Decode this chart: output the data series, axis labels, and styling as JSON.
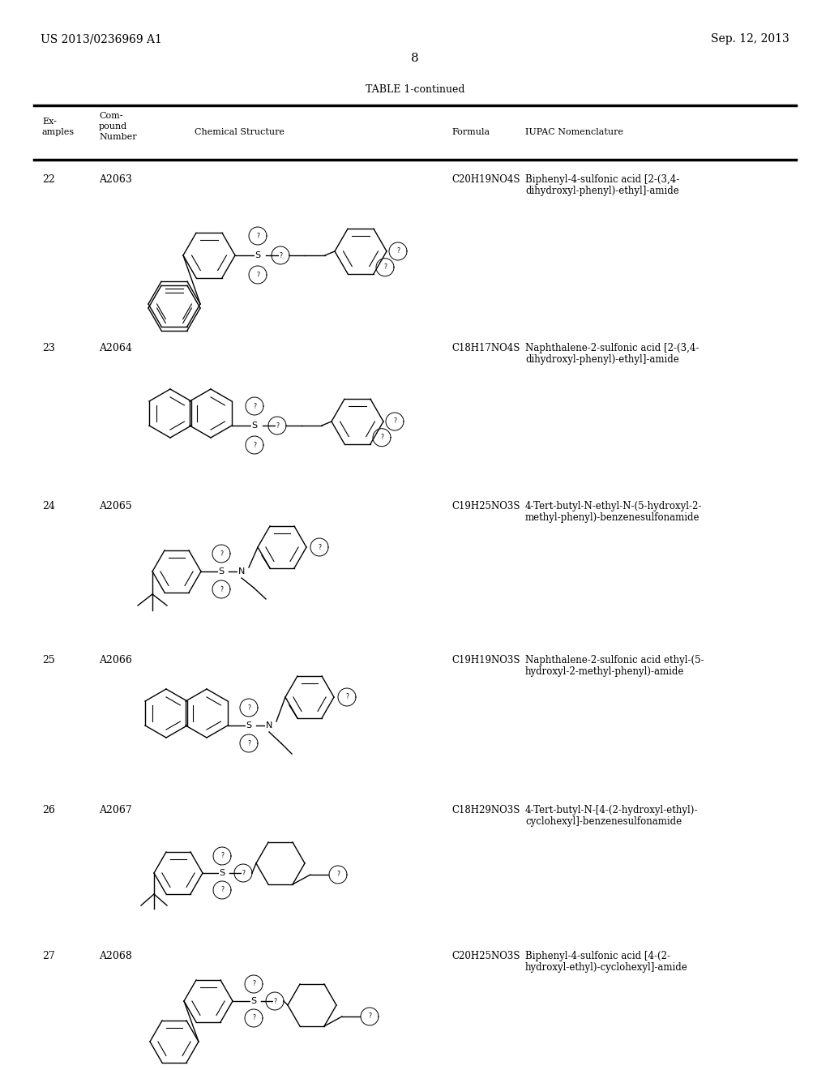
{
  "bg_color": "#ffffff",
  "header_left": "US 2013/0236969 A1",
  "header_right": "Sep. 12, 2013",
  "page_number": "8",
  "table_title": "TABLE 1-continued",
  "rows": [
    {
      "example": "22",
      "compound": "A2063",
      "formula": "C20H19NO4S",
      "iupac_line1": "Biphenyl-4-sulfonic acid [2-(3,4-",
      "iupac_line2": "dihydroxyl-phenyl)-ethyl]-amide"
    },
    {
      "example": "23",
      "compound": "A2064",
      "formula": "C18H17NO4S",
      "iupac_line1": "Naphthalene-2-sulfonic acid [2-(3,4-",
      "iupac_line2": "dihydroxyl-phenyl)-ethyl]-amide"
    },
    {
      "example": "24",
      "compound": "A2065",
      "formula": "C19H25NO3S",
      "iupac_line1": "4-Tert-butyl-N-ethyl-N-(5-hydroxyl-2-",
      "iupac_line2": "methyl-phenyl)-benzenesulfonamide"
    },
    {
      "example": "25",
      "compound": "A2066",
      "formula": "C19H19NO3S",
      "iupac_line1": "Naphthalene-2-sulfonic acid ethyl-(5-",
      "iupac_line2": "hydroxyl-2-methyl-phenyl)-amide"
    },
    {
      "example": "26",
      "compound": "A2067",
      "formula": "C18H29NO3S",
      "iupac_line1": "4-Tert-butyl-N-[4-(2-hydroxyl-ethyl)-",
      "iupac_line2": "cyclohexyl]-benzenesulfonamide"
    },
    {
      "example": "27",
      "compound": "A2068",
      "formula": "C20H25NO3S",
      "iupac_line1": "Biphenyl-4-sulfonic acid [4-(2-",
      "iupac_line2": "hydroxyl-ethyl)-cyclohexyl]-amide"
    }
  ]
}
